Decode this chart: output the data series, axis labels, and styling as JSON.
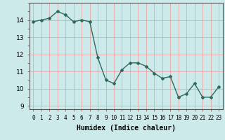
{
  "x": [
    0,
    1,
    2,
    3,
    4,
    5,
    6,
    7,
    8,
    9,
    10,
    11,
    12,
    13,
    14,
    15,
    16,
    17,
    18,
    19,
    20,
    21,
    22,
    23
  ],
  "y": [
    13.9,
    14.0,
    14.1,
    14.5,
    14.3,
    13.9,
    14.0,
    13.9,
    11.8,
    10.5,
    10.3,
    11.1,
    11.5,
    11.5,
    11.3,
    10.9,
    10.6,
    10.7,
    9.5,
    9.7,
    10.3,
    9.5,
    9.5,
    10.1
  ],
  "line_color": "#2e6b5e",
  "marker": "D",
  "marker_size": 2.0,
  "xlabel": "Humidex (Indice chaleur)",
  "xlim": [
    -0.5,
    23.5
  ],
  "ylim": [
    8.8,
    15.0
  ],
  "yticks": [
    9,
    10,
    11,
    12,
    13,
    14
  ],
  "xticks": [
    0,
    1,
    2,
    3,
    4,
    5,
    6,
    7,
    8,
    9,
    10,
    11,
    12,
    13,
    14,
    15,
    16,
    17,
    18,
    19,
    20,
    21,
    22,
    23
  ],
  "xtick_labels": [
    "0",
    "1",
    "2",
    "3",
    "4",
    "5",
    "6",
    "7",
    "8",
    "9",
    "10",
    "11",
    "12",
    "13",
    "14",
    "15",
    "16",
    "17",
    "18",
    "19",
    "20",
    "21",
    "22",
    "23"
  ],
  "bg_color": "#cceaea",
  "grid_major_color": "#ee9999",
  "grid_minor_color": "#cceaea",
  "line_width": 1.0,
  "xlabel_fontsize": 7.0,
  "ytick_fontsize": 6.5,
  "xtick_fontsize": 5.5
}
